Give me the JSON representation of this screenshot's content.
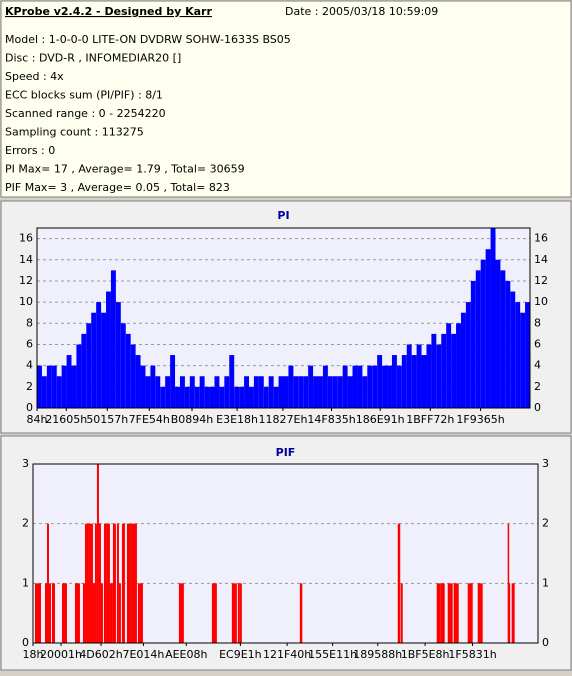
{
  "info": {
    "title": "KProbe v2.4.2 - Designed by Karr",
    "date": "Date : 2005/03/18 10:59:09",
    "lines": [
      "Model : 1-0-0-0 LITE-ON DVDRW SOHW-1633S BS05",
      "Disc : DVD-R , INFOMEDIAR20 []",
      "Speed : 4x",
      "ECC blocks sum (PI/PIF) : 8/1",
      "Scanned range : 0 - 2254220",
      "Sampling count : 113275",
      "Errors : 0",
      "PI Max= 17 , Average= 1.79 , Total= 30659",
      "PIF Max= 3 , Average= 0.05 , Total= 823"
    ]
  },
  "chart_data": [
    {
      "type": "bar",
      "title": "PI",
      "color": "#0000ff",
      "grid": true,
      "xlim": [
        0,
        2300000
      ],
      "ylim": [
        0,
        17
      ],
      "yticks": [
        0,
        2,
        4,
        6,
        8,
        10,
        12,
        14,
        16
      ],
      "xticks": [
        {
          "value": 132,
          "label": "84h"
        },
        {
          "value": 136709,
          "label": "21605h"
        },
        {
          "value": 328023,
          "label": "50157h"
        },
        {
          "value": 523860,
          "label": "7FE54h"
        },
        {
          "value": 723092,
          "label": "B0894h"
        },
        {
          "value": 933400,
          "label": "E3E18h"
        },
        {
          "value": 1147518,
          "label": "11827Eh"
        },
        {
          "value": 1374261,
          "label": "14F835h"
        },
        {
          "value": 1601169,
          "label": "186E91h"
        },
        {
          "value": 1834866,
          "label": "1BFF72h"
        },
        {
          "value": 2069349,
          "label": "1F9365h"
        }
      ],
      "x": [
        0,
        23000,
        46000,
        69000,
        92000,
        115000,
        138000,
        161000,
        184000,
        207000,
        230000,
        253000,
        276000,
        299000,
        322000,
        345000,
        368000,
        391000,
        414000,
        437000,
        460000,
        483000,
        506000,
        529000,
        552000,
        575000,
        598000,
        621000,
        644000,
        667000,
        690000,
        713000,
        736000,
        759000,
        782000,
        805000,
        828000,
        851000,
        874000,
        897000,
        920000,
        943000,
        966000,
        989000,
        1012000,
        1035000,
        1058000,
        1081000,
        1104000,
        1127000,
        1150000,
        1173000,
        1196000,
        1219000,
        1242000,
        1265000,
        1288000,
        1311000,
        1334000,
        1357000,
        1380000,
        1403000,
        1426000,
        1449000,
        1472000,
        1495000,
        1518000,
        1541000,
        1564000,
        1587000,
        1610000,
        1633000,
        1656000,
        1679000,
        1702000,
        1725000,
        1748000,
        1771000,
        1794000,
        1817000,
        1840000,
        1863000,
        1886000,
        1909000,
        1932000,
        1955000,
        1978000,
        2001000,
        2024000,
        2047000,
        2070000,
        2093000,
        2116000,
        2139000,
        2162000,
        2185000,
        2208000,
        2231000,
        2254000,
        2277000
      ],
      "values": [
        4,
        3,
        4,
        4,
        3,
        4,
        5,
        4,
        6,
        7,
        8,
        9,
        10,
        9,
        11,
        13,
        10,
        8,
        7,
        6,
        5,
        4,
        3,
        4,
        3,
        2,
        3,
        5,
        2,
        3,
        2,
        3,
        2,
        3,
        2,
        2,
        3,
        2,
        3,
        5,
        2,
        2,
        3,
        2,
        3,
        3,
        2,
        3,
        2,
        3,
        3,
        4,
        3,
        3,
        3,
        4,
        3,
        3,
        4,
        3,
        3,
        3,
        4,
        3,
        4,
        4,
        3,
        4,
        4,
        5,
        4,
        4,
        5,
        4,
        5,
        6,
        5,
        6,
        5,
        6,
        7,
        6,
        7,
        8,
        7,
        8,
        9,
        10,
        12,
        13,
        14,
        15,
        17,
        14,
        13,
        12,
        11,
        10,
        9,
        10
      ]
    },
    {
      "type": "bar",
      "title": "PIF",
      "color": "#ff0000",
      "grid": true,
      "xlim": [
        24,
        2360000
      ],
      "ylim": [
        0,
        3
      ],
      "yticks": [
        0,
        1,
        2,
        3
      ],
      "xticks": [
        {
          "value": 24,
          "label": "18h"
        },
        {
          "value": 131073,
          "label": "20001h"
        },
        {
          "value": 317954,
          "label": "4D602h"
        },
        {
          "value": 516116,
          "label": "7E014h"
        },
        {
          "value": 716296,
          "label": "AEE08h"
        },
        {
          "value": 969185,
          "label": "EC9E1h"
        },
        {
          "value": 1187648,
          "label": "121F40h"
        },
        {
          "value": 1400337,
          "label": "155E11h"
        },
        {
          "value": 1611144,
          "label": "189588h"
        },
        {
          "value": 1832424,
          "label": "1BF5E8h"
        },
        {
          "value": 2054193,
          "label": "1F5831h"
        }
      ],
      "x": [
        9340,
        23350,
        56040,
        65380,
        74720,
        88730,
        135430,
        196140,
        233500,
        242840,
        252180,
        261520,
        270860,
        280200,
        289540,
        298880,
        308220,
        317560,
        331570,
        345580,
        359590,
        373600,
        392280,
        401620,
        415630,
        438980,
        462330,
        490350,
        681820,
        835930,
        929330,
        957350,
        966690,
        1246890,
        1251560,
        1704550,
        1709220,
        1718560,
        1886680,
        1905360,
        1938050,
        1966070,
        2031450,
        2078150,
        2218250,
        2222920,
        2236930
      ],
      "values": [
        1,
        1,
        1,
        2,
        1,
        1,
        1,
        1,
        1,
        2,
        2,
        2,
        2,
        1,
        2,
        3,
        2,
        1,
        2,
        2,
        1,
        2,
        2,
        1,
        2,
        2,
        2,
        1,
        1,
        1,
        1,
        1,
        1,
        1,
        1,
        2,
        2,
        1,
        1,
        1,
        1,
        1,
        1,
        1,
        2,
        1,
        1
      ]
    }
  ]
}
